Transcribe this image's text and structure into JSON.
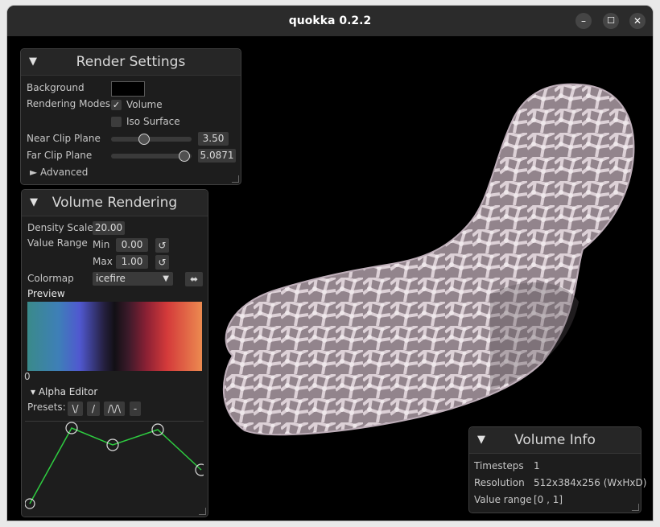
{
  "window": {
    "title": "quokka 0.2.2",
    "minimize": "–",
    "maximize": "☐",
    "close": "✕"
  },
  "render_settings": {
    "collapse": "▼",
    "title": "Render Settings",
    "background_label": "Background",
    "background_color": "#000000",
    "rendering_modes_label": "Rendering Modes",
    "volume_label": "Volume",
    "volume_checked": "✓",
    "iso_surface_label": "Iso Surface",
    "near_clip_label": "Near Clip Plane",
    "near_clip_value": "3.50",
    "near_clip_fraction": 0.42,
    "far_clip_label": "Far Clip Plane",
    "far_clip_value": "5.0871",
    "far_clip_fraction": 1.0,
    "advanced_label": "► Advanced"
  },
  "volume_rendering": {
    "collapse": "▼",
    "title": "Volume Rendering",
    "density_scale_label": "Density Scale",
    "density_scale_value": "20.00",
    "value_range_label": "Value Range",
    "min_label": "Min",
    "min_value": "0.00",
    "max_label": "Max",
    "max_value": "1.00",
    "reset_icon": "↺",
    "colormap_label": "Colormap",
    "colormap_value": "icefire",
    "dropdown_icon": "▼",
    "swap_icon": "⬌",
    "preview_label": "Preview",
    "preview_zero": "0",
    "alpha_editor_label": "▾ Alpha Editor",
    "presets_label": "Presets:",
    "presets": [
      "\\/",
      "/",
      "/\\/\\",
      "-"
    ]
  },
  "volume_info": {
    "collapse": "▼",
    "title": "Volume Info",
    "timesteps_label": "Timesteps",
    "timesteps_value": "1",
    "resolution_label": "Resolution",
    "resolution_value": "512x384x256 (WxHxD)",
    "value_range_label": "Value range",
    "value_range_value": "[0 , 1]"
  },
  "colors": {
    "accent": "#2ecc40",
    "panel": "#1d1d1d",
    "field": "#3a3a3a"
  }
}
